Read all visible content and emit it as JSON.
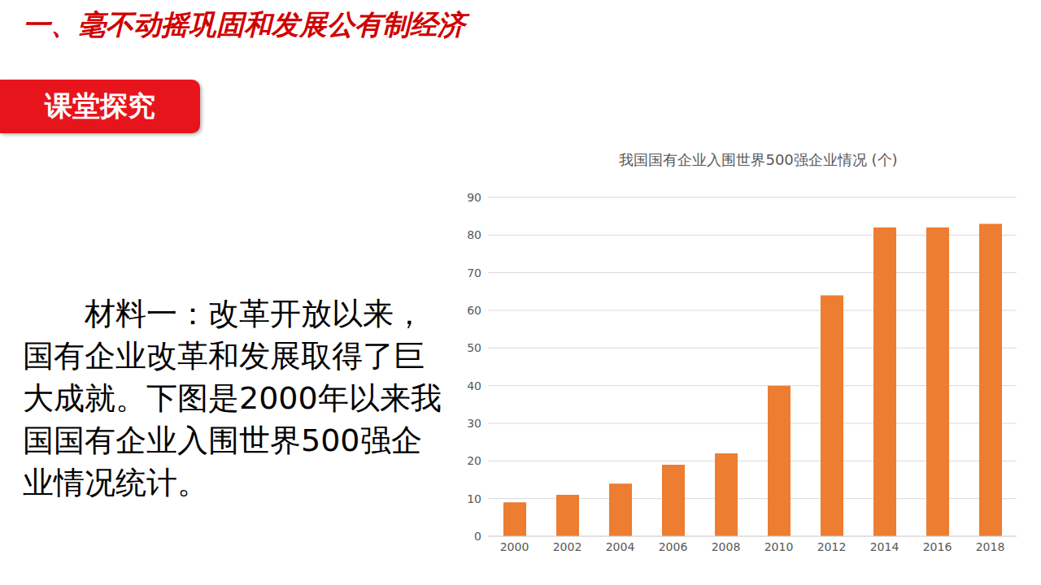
{
  "heading": "一、毫不动摇巩固和发展公有制经济",
  "badge": "课堂探究",
  "material": "材料一：改革开放以来，国有企业改革和发展取得了巨大成就。下图是2000年以来我国国有企业入围世界500强企业情况统计。",
  "chart_data": {
    "type": "bar",
    "title": "我国国有企业入围世界500强企业情况 (个)",
    "categories": [
      "2000",
      "2002",
      "2004",
      "2006",
      "2008",
      "2010",
      "2012",
      "2014",
      "2016",
      "2018"
    ],
    "values": [
      9,
      11,
      14,
      19,
      22,
      40,
      64,
      82,
      82,
      83
    ],
    "color": "#ed7d31",
    "ylim": [
      0,
      90
    ],
    "yticks": [
      0,
      10,
      20,
      30,
      40,
      50,
      60,
      70,
      80,
      90
    ],
    "grid": true
  }
}
